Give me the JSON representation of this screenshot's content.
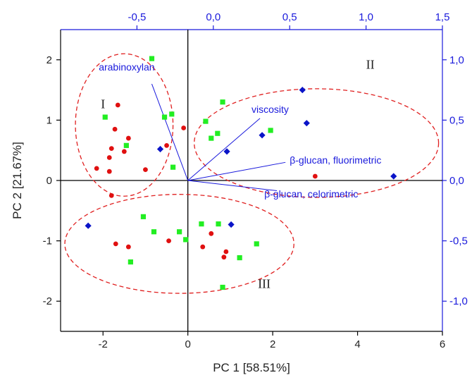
{
  "chart_data": {
    "type": "scatter",
    "title": "",
    "xlabel": "PC 1 [58.51%]",
    "ylabel": "PC 2 [21.67%]",
    "xlim": [
      -3,
      6
    ],
    "ylim": [
      -2.5,
      2.5
    ],
    "x_ticks": [
      "-2",
      "0",
      "2",
      "4",
      "6"
    ],
    "y_ticks": [
      "-2",
      "-1",
      "0",
      "1",
      "2"
    ],
    "secondary_x": {
      "lim": [
        -1,
        1.5
      ],
      "ticks": [
        "-0,5",
        "0,0",
        "0,5",
        "1,0",
        "1,5"
      ]
    },
    "secondary_y": {
      "lim": [
        -1.25,
        1.25
      ],
      "ticks": [
        "-1,0",
        "-0,5",
        "0,0",
        "0,5",
        "1,0"
      ]
    },
    "colors": {
      "green": "#22ee22",
      "red": "#e01010",
      "blue": "#0a14c8",
      "axis_blue": "#1a1adc",
      "ellipse": "#e02020"
    },
    "series": [
      {
        "marker": "square",
        "color": "#22ee22",
        "points": [
          [
            -0.85,
            2.02
          ],
          [
            -1.95,
            1.05
          ],
          [
            -0.55,
            1.05
          ],
          [
            -0.38,
            1.1
          ],
          [
            -1.45,
            0.58
          ],
          [
            -0.35,
            0.22
          ],
          [
            0.42,
            0.98
          ],
          [
            0.82,
            1.3
          ],
          [
            0.55,
            0.7
          ],
          [
            0.7,
            0.78
          ],
          [
            1.95,
            0.83
          ],
          [
            -1.05,
            -0.6
          ],
          [
            -0.8,
            -0.85
          ],
          [
            -0.2,
            -0.85
          ],
          [
            -0.05,
            -0.98
          ],
          [
            0.32,
            -0.72
          ],
          [
            0.72,
            -0.72
          ],
          [
            1.62,
            -1.05
          ],
          [
            1.22,
            -1.28
          ],
          [
            -1.35,
            -1.35
          ],
          [
            0.82,
            -1.77
          ]
        ]
      },
      {
        "marker": "circle",
        "color": "#e01010",
        "points": [
          [
            -1.65,
            1.25
          ],
          [
            -1.72,
            0.85
          ],
          [
            -1.4,
            0.7
          ],
          [
            -1.8,
            0.53
          ],
          [
            -1.85,
            0.38
          ],
          [
            -1.5,
            0.48
          ],
          [
            -2.15,
            0.2
          ],
          [
            -1.85,
            0.15
          ],
          [
            -1.8,
            -0.25
          ],
          [
            -0.5,
            0.58
          ],
          [
            -0.1,
            0.87
          ],
          [
            -1.0,
            0.18
          ],
          [
            -1.7,
            -1.05
          ],
          [
            -1.4,
            -1.1
          ],
          [
            -0.45,
            -1.0
          ],
          [
            0.35,
            -1.1
          ],
          [
            0.55,
            -0.88
          ],
          [
            0.9,
            -1.18
          ],
          [
            0.85,
            -1.27
          ],
          [
            3.0,
            0.07
          ]
        ]
      },
      {
        "marker": "diamond",
        "color": "#0a14c8",
        "points": [
          [
            -0.65,
            0.52
          ],
          [
            0.92,
            0.48
          ],
          [
            1.75,
            0.75
          ],
          [
            2.7,
            1.5
          ],
          [
            2.8,
            0.95
          ],
          [
            4.85,
            0.07
          ],
          [
            -2.35,
            -0.75
          ],
          [
            1.02,
            -0.73
          ]
        ]
      }
    ],
    "loadings": [
      {
        "label": "arabinoxylan",
        "x": -0.85,
        "y": 1.6
      },
      {
        "label": "viscosity",
        "x": 1.7,
        "y": 1.03
      },
      {
        "label": "β-glucan, fluorimetric",
        "x": 2.3,
        "y": 0.3
      },
      {
        "label": "β-glucan, celorimetric",
        "x": 2.1,
        "y": -0.17
      }
    ],
    "groups": [
      {
        "label": "I",
        "cx": -1.5,
        "cy": 0.92,
        "rx": 1.15,
        "ry": 1.18
      },
      {
        "label": "II",
        "cx": 3.03,
        "cy": 0.62,
        "rx": 2.88,
        "ry": 0.9
      },
      {
        "label": "III",
        "cx": -0.2,
        "cy": -1.05,
        "rx": 2.7,
        "ry": 0.82
      }
    ]
  }
}
